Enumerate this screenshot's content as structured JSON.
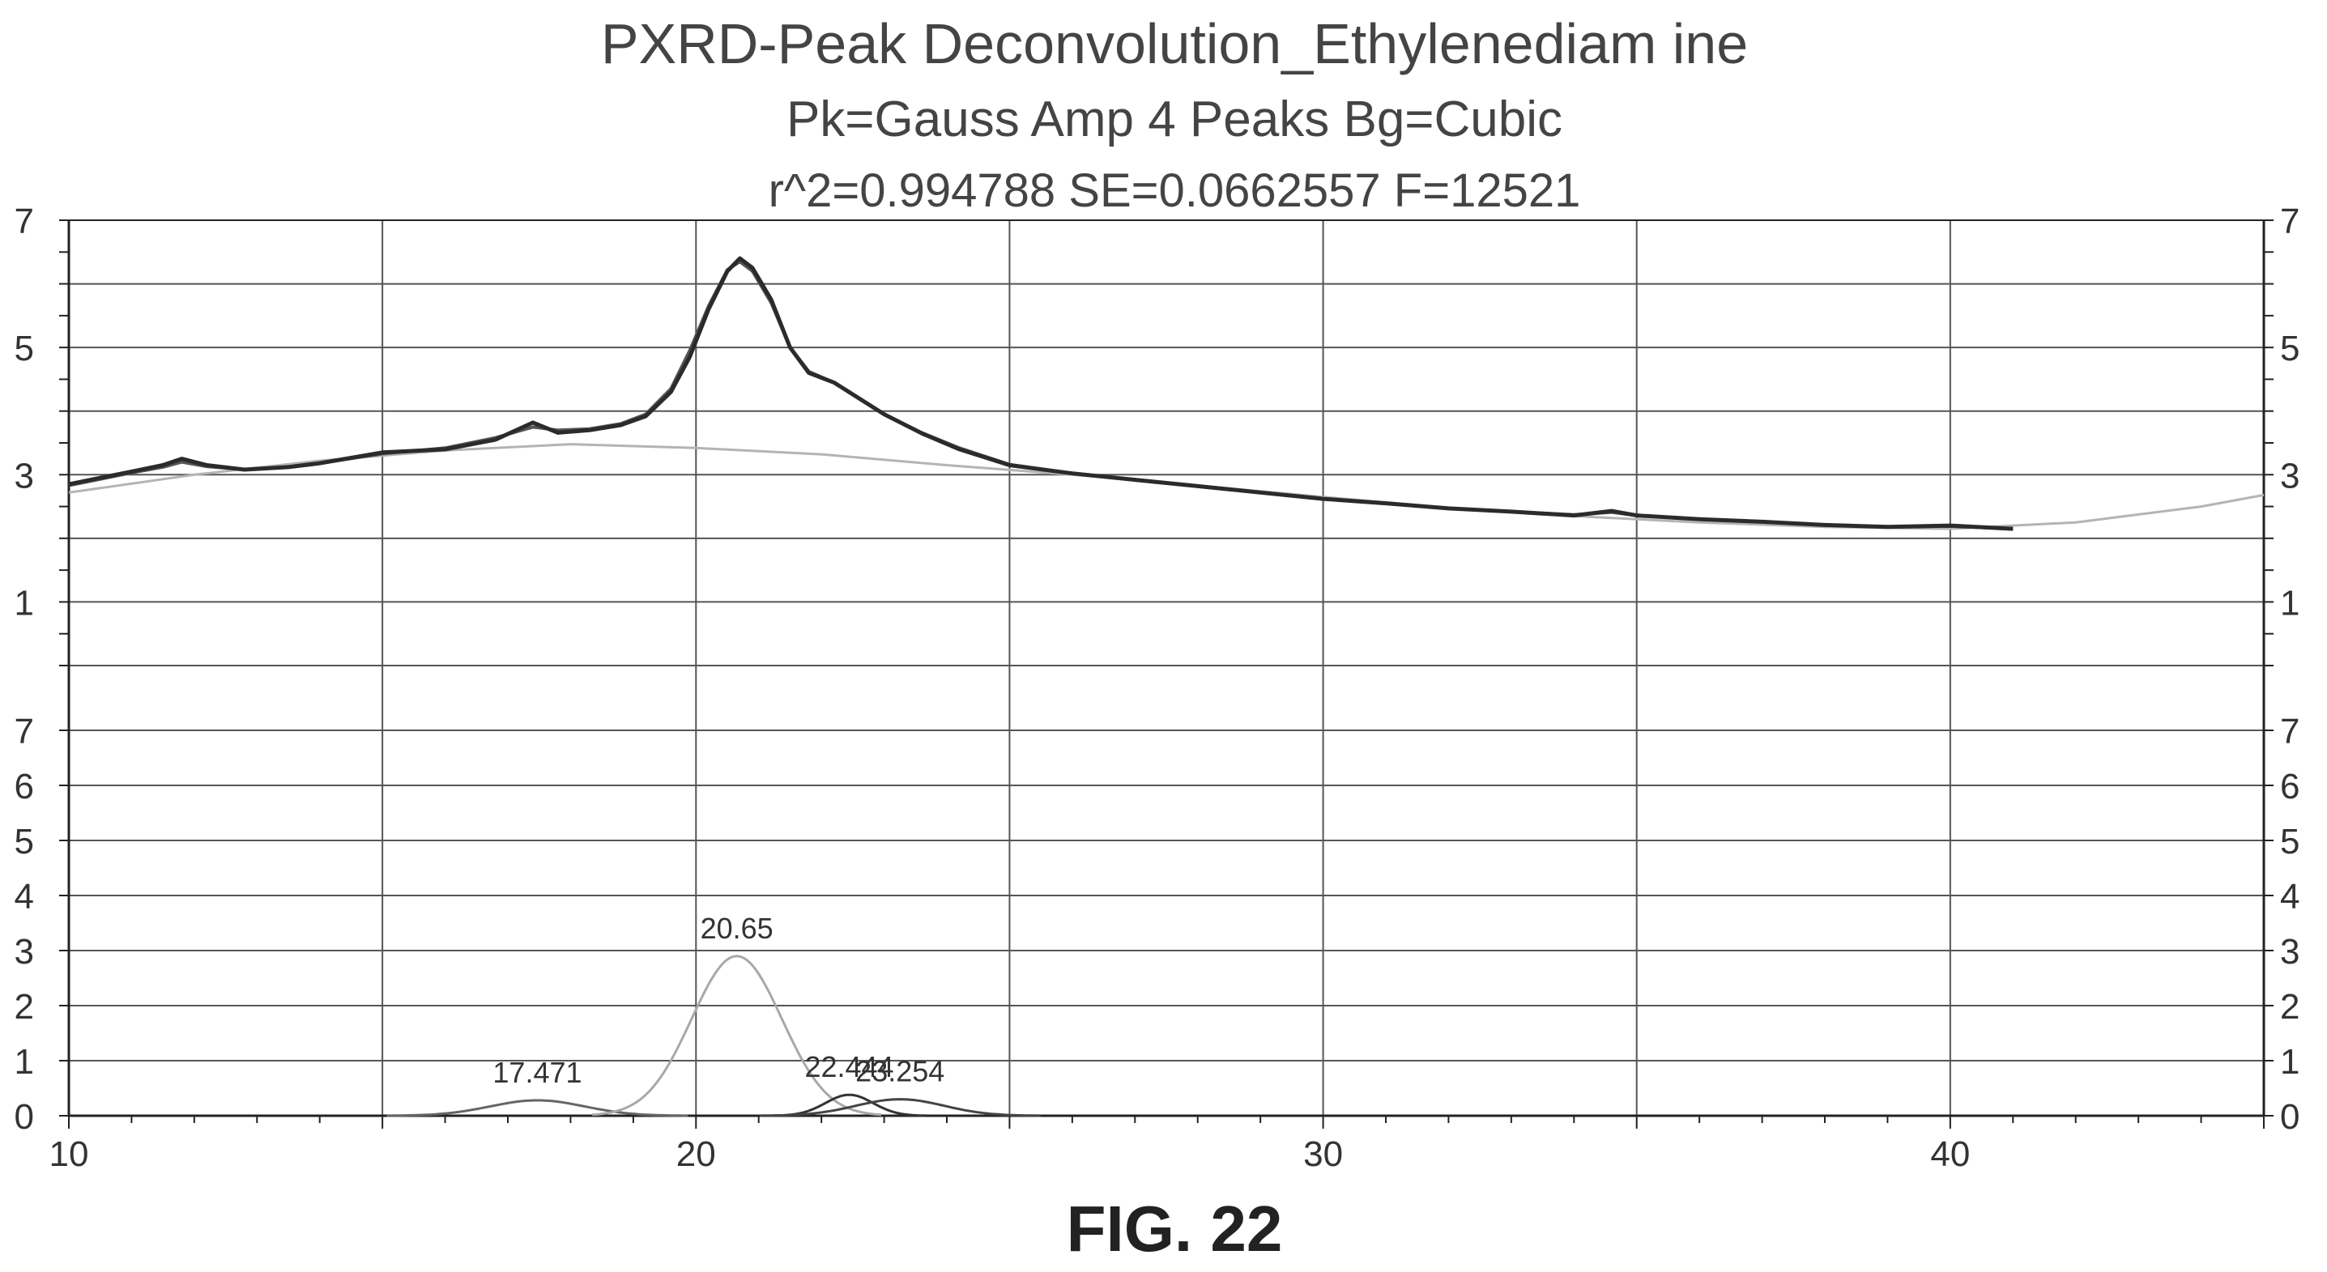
{
  "figure": {
    "caption": "FIG. 22"
  },
  "chart_data": {
    "type": "line",
    "title": "PXRD-Peak Deconvolution_Ethylenediam ine",
    "subtitle": "Pk=Gauss Amp  4 Peaks  Bg=Cubic",
    "stats": "r^2=0.994788  SE=0.0662557  F=12521",
    "xlabel": "",
    "ylabel": "",
    "xlim": [
      10,
      45
    ],
    "x_ticks": [
      10,
      20,
      30,
      40
    ],
    "grid": true,
    "upper_panel": {
      "ylim": [
        0,
        7
      ],
      "y_tick_labels": [
        "7",
        "5",
        "3",
        "1"
      ],
      "y_tick_values": [
        7,
        5,
        3,
        1
      ],
      "series": [
        {
          "role": "data",
          "x": [
            10.0,
            10.5,
            11.0,
            11.5,
            11.8,
            12.2,
            12.8,
            13.5,
            14.0,
            15.0,
            16.0,
            16.8,
            17.4,
            17.8,
            18.3,
            18.8,
            19.2,
            19.6,
            19.9,
            20.2,
            20.5,
            20.7,
            20.9,
            21.2,
            21.5,
            21.8,
            22.2,
            22.6,
            23.0,
            23.6,
            24.2,
            25.0,
            26.0,
            27.0,
            28.0,
            29.0,
            30.0,
            31.0,
            32.0,
            33.0,
            34.0,
            34.6,
            35.0,
            36.0,
            37.0,
            38.0,
            39.0,
            40.0,
            41.0
          ],
          "y": [
            2.85,
            2.95,
            3.05,
            3.15,
            3.25,
            3.15,
            3.08,
            3.12,
            3.18,
            3.35,
            3.4,
            3.55,
            3.82,
            3.66,
            3.7,
            3.78,
            3.92,
            4.3,
            4.85,
            5.6,
            6.2,
            6.4,
            6.25,
            5.75,
            5.0,
            4.6,
            4.45,
            4.2,
            3.95,
            3.65,
            3.4,
            3.15,
            3.02,
            2.92,
            2.82,
            2.72,
            2.62,
            2.55,
            2.47,
            2.42,
            2.36,
            2.43,
            2.36,
            2.3,
            2.26,
            2.21,
            2.18,
            2.2,
            2.15
          ]
        },
        {
          "role": "fit",
          "x": [
            10.0,
            10.5,
            11.0,
            11.5,
            11.8,
            12.2,
            12.8,
            13.5,
            14.0,
            15.0,
            16.0,
            16.8,
            17.4,
            17.8,
            18.3,
            18.8,
            19.2,
            19.6,
            19.9,
            20.2,
            20.5,
            20.7,
            20.9,
            21.2,
            21.5,
            21.8,
            22.2,
            22.6,
            23.0,
            23.6,
            24.2,
            25.0,
            26.0,
            27.0,
            28.0,
            29.0,
            30.0,
            31.0,
            32.0,
            33.0,
            34.0,
            34.6,
            35.0,
            36.0,
            37.0,
            38.0,
            39.0,
            40.0,
            41.0
          ],
          "y": [
            2.83,
            2.93,
            3.03,
            3.12,
            3.2,
            3.13,
            3.08,
            3.12,
            3.18,
            3.33,
            3.42,
            3.58,
            3.75,
            3.7,
            3.72,
            3.8,
            3.95,
            4.35,
            4.95,
            5.65,
            6.22,
            6.35,
            6.2,
            5.7,
            5.0,
            4.62,
            4.45,
            4.2,
            3.95,
            3.66,
            3.42,
            3.16,
            3.02,
            2.92,
            2.82,
            2.72,
            2.62,
            2.55,
            2.47,
            2.42,
            2.37,
            2.41,
            2.36,
            2.3,
            2.26,
            2.21,
            2.18,
            2.19,
            2.15
          ]
        },
        {
          "role": "background",
          "x": [
            10.0,
            12.0,
            14.0,
            16.0,
            18.0,
            20.0,
            22.0,
            24.0,
            26.0,
            28.0,
            30.0,
            32.0,
            34.0,
            36.0,
            38.0,
            40.0,
            42.0,
            44.0,
            45.0
          ],
          "y": [
            2.72,
            3.0,
            3.22,
            3.38,
            3.48,
            3.42,
            3.32,
            3.15,
            3.0,
            2.83,
            2.65,
            2.48,
            2.35,
            2.25,
            2.18,
            2.15,
            2.25,
            2.5,
            2.68
          ]
        }
      ]
    },
    "lower_panel": {
      "ylim": [
        0,
        7
      ],
      "y_tick_labels": [
        "7",
        "6",
        "5",
        "4",
        "3",
        "2",
        "1",
        "0"
      ],
      "y_tick_values": [
        7,
        6,
        5,
        4,
        3,
        2,
        1,
        0
      ],
      "peaks": [
        {
          "label": "17.471",
          "center": 17.471,
          "amplitude": 0.28,
          "width": 0.75,
          "color": "#666666"
        },
        {
          "label": "20.65",
          "center": 20.65,
          "amplitude": 2.9,
          "width": 0.72,
          "color": "#a8a8a8"
        },
        {
          "label": "22.444",
          "center": 22.444,
          "amplitude": 0.38,
          "width": 0.38,
          "color": "#333333"
        },
        {
          "label": "23.254",
          "center": 23.254,
          "amplitude": 0.3,
          "width": 0.7,
          "color": "#444444"
        }
      ]
    },
    "colors": {
      "data": "#2b2b2b",
      "fit": "#555555",
      "background": "#b4b4b4",
      "grid": "#555555"
    }
  }
}
